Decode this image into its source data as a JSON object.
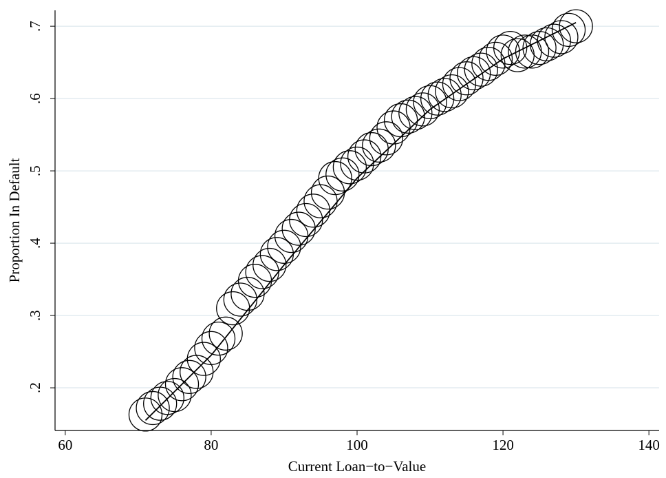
{
  "chart_data": {
    "type": "scatter",
    "x_label": "Current Loan−to−Value",
    "y_label": "Proportion In Default",
    "xlim": [
      58.6,
      141.4
    ],
    "ylim": [
      0.141,
      0.722
    ],
    "xticks": [
      60,
      80,
      100,
      120,
      140
    ],
    "yticks": [
      {
        "value": 0.2,
        "label": ".2"
      },
      {
        "value": 0.3,
        "label": ".3"
      },
      {
        "value": 0.4,
        "label": ".4"
      },
      {
        "value": 0.5,
        "label": ".5"
      },
      {
        "value": 0.6,
        "label": ".6"
      },
      {
        "value": 0.7,
        "label": ".7"
      }
    ],
    "grid": true,
    "series": [
      {
        "type": "scatter",
        "color": "#000000",
        "x": [
          71,
          72,
          73,
          74,
          75,
          76,
          77,
          78,
          79,
          80,
          81,
          82,
          83,
          84,
          85,
          86,
          87,
          88,
          89,
          90,
          91,
          92,
          93,
          94,
          95,
          96,
          97,
          98,
          99,
          100,
          101,
          102,
          103,
          104,
          105,
          106,
          107,
          108,
          109,
          110,
          111,
          112,
          113,
          114,
          115,
          116,
          117,
          118,
          119,
          120,
          121,
          122,
          123,
          124,
          125,
          126,
          127,
          128,
          129,
          130
        ],
        "values": [
          0.163,
          0.172,
          0.178,
          0.186,
          0.19,
          0.205,
          0.215,
          0.222,
          0.24,
          0.255,
          0.268,
          0.275,
          0.31,
          0.322,
          0.33,
          0.348,
          0.36,
          0.37,
          0.385,
          0.395,
          0.41,
          0.42,
          0.432,
          0.445,
          0.458,
          0.47,
          0.49,
          0.495,
          0.505,
          0.51,
          0.52,
          0.53,
          0.535,
          0.545,
          0.56,
          0.57,
          0.575,
          0.58,
          0.585,
          0.595,
          0.6,
          0.605,
          0.61,
          0.62,
          0.628,
          0.635,
          0.64,
          0.648,
          0.655,
          0.665,
          0.67,
          0.66,
          0.665,
          0.665,
          0.67,
          0.675,
          0.68,
          0.685,
          0.695,
          0.7
        ]
      },
      {
        "type": "line",
        "color": "#000000",
        "x": [
          71,
          80,
          90,
          100,
          110,
          120,
          130
        ],
        "values": [
          0.155,
          0.245,
          0.37,
          0.49,
          0.585,
          0.655,
          0.705
        ]
      }
    ]
  }
}
